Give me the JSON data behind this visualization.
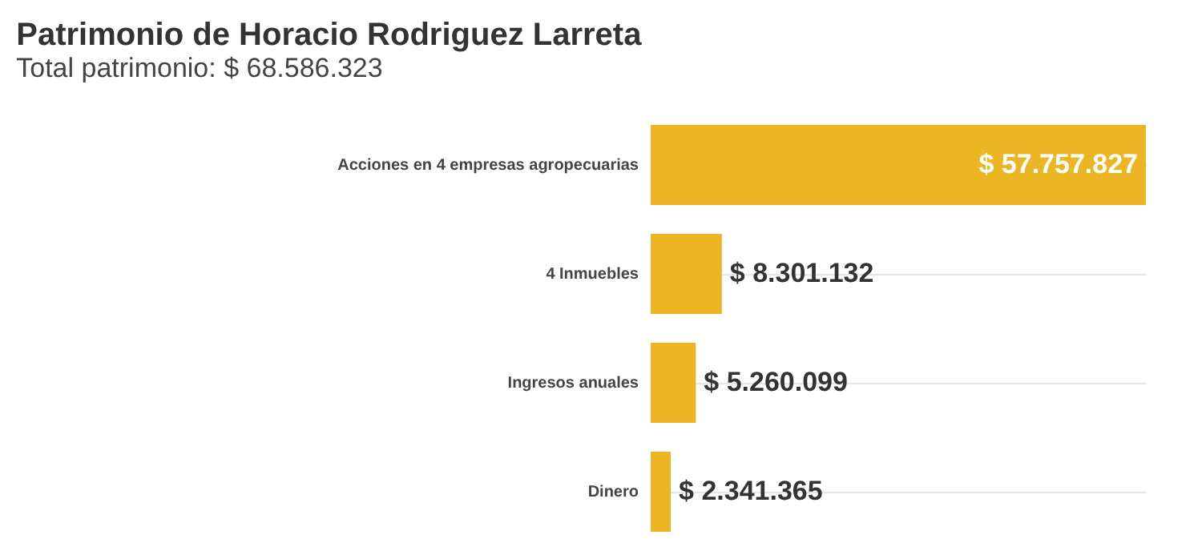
{
  "chart_data": {
    "type": "bar",
    "orientation": "horizontal",
    "title": "Patrimonio de Horacio Rodriguez Larreta",
    "subtitle": "Total patrimonio: $ 68.586.323",
    "categories": [
      "Acciones en 4 empresas agropecuarias",
      "4 Inmuebles",
      "Ingresos anuales",
      "Dinero"
    ],
    "values": [
      57757827,
      8301132,
      5260099,
      2341365
    ],
    "value_labels": [
      "$ 57.757.827",
      "$ 8.301.132",
      "$ 5.260.099",
      "$ 2.341.365"
    ],
    "color": "#ecb523",
    "grid": "y"
  }
}
